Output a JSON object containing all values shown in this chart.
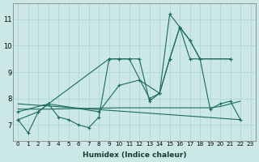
{
  "background_color": "#cce8e6",
  "grid_color": "#aad4d0",
  "line_color": "#1a6b5a",
  "x_label": "Humidex (Indice chaleur)",
  "ylim": [
    6.4,
    11.6
  ],
  "xlim": [
    -0.5,
    23.5
  ],
  "yticks": [
    7,
    8,
    9,
    10,
    11
  ],
  "xticks": [
    0,
    1,
    2,
    3,
    4,
    5,
    6,
    7,
    8,
    9,
    10,
    11,
    12,
    13,
    14,
    15,
    16,
    17,
    18,
    19,
    20,
    21,
    22,
    23
  ],
  "line1_x": [
    0,
    1,
    2,
    3,
    4,
    5,
    6,
    7,
    8,
    9,
    10,
    11,
    12,
    13,
    14,
    15,
    16,
    17,
    18,
    19,
    20,
    21,
    22
  ],
  "line1_y": [
    7.2,
    6.7,
    7.5,
    7.8,
    7.3,
    7.2,
    7.0,
    6.9,
    7.3,
    9.5,
    9.5,
    9.5,
    9.5,
    7.9,
    8.2,
    11.2,
    10.7,
    10.2,
    9.5,
    7.6,
    7.8,
    7.9,
    7.2
  ],
  "line2_x": [
    0,
    3,
    9,
    10,
    11,
    13,
    14,
    15,
    16,
    17,
    21
  ],
  "line2_y": [
    7.5,
    7.8,
    9.5,
    9.5,
    9.5,
    8.0,
    8.2,
    9.5,
    10.7,
    9.5,
    9.5
  ],
  "line3_x": [
    0,
    2,
    3,
    8,
    10,
    12,
    14,
    15,
    16,
    17,
    18,
    21
  ],
  "line3_y": [
    7.2,
    7.5,
    7.8,
    7.5,
    8.5,
    8.7,
    8.2,
    9.5,
    10.7,
    10.2,
    9.5,
    9.5
  ],
  "line4_x": [
    0,
    22
  ],
  "line4_y": [
    7.8,
    7.2
  ],
  "line5_x": [
    0,
    3,
    10,
    14,
    19,
    20,
    21,
    22
  ],
  "line5_y": [
    7.6,
    7.6,
    7.65,
    7.65,
    7.65,
    7.7,
    7.8,
    7.9
  ]
}
